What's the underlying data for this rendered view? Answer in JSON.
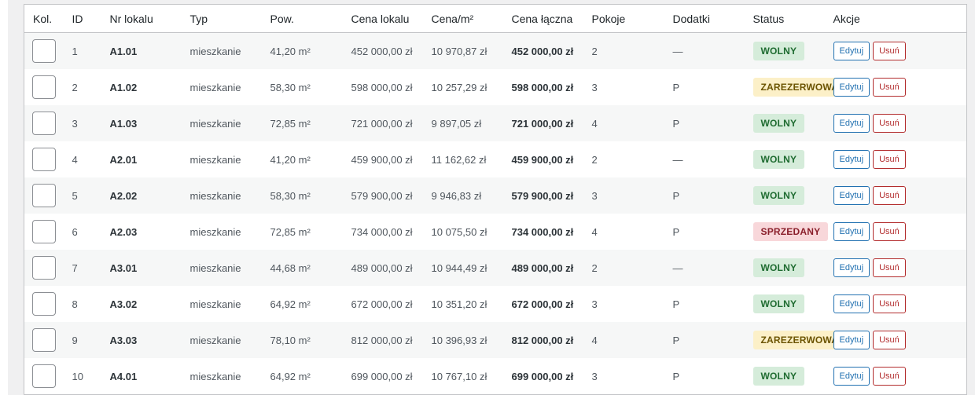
{
  "table": {
    "headers": [
      "Kol.",
      "ID",
      "Nr lokalu",
      "Typ",
      "Pow.",
      "Cena lokalu",
      "Cena/m²",
      "Cena łączna",
      "Pokoje",
      "Dodatki",
      "Status",
      "Akcje"
    ],
    "rows": [
      {
        "cells": [
          "1",
          "A1.01",
          "mieszkanie",
          "41,20 m²",
          "452 000,00 zł",
          "10 970,87 zł",
          "452 000,00 zł",
          "2",
          "—"
        ],
        "status": {
          "label": "WOLNY",
          "color": "#1e6b30",
          "background": "#d5ecda"
        },
        "actions": [
          "Edytuj",
          "Usuń"
        ]
      },
      {
        "cells": [
          "2",
          "A1.02",
          "mieszkanie",
          "58,30 m²",
          "598 000,00 zł",
          "10 257,29 zł",
          "598 000,00 zł",
          "3",
          "P"
        ],
        "status": {
          "label": "ZAREZERWOWANY",
          "color": "#6b5300",
          "background": "#fcf0c8"
        },
        "actions": [
          "Edytuj",
          "Usuń"
        ]
      },
      {
        "cells": [
          "3",
          "A1.03",
          "mieszkanie",
          "72,85 m²",
          "721 000,00 zł",
          "9 897,05 zł",
          "721 000,00 zł",
          "4",
          "P"
        ],
        "status": {
          "label": "WOLNY",
          "color": "#1e6b30",
          "background": "#d5ecda"
        },
        "actions": [
          "Edytuj",
          "Usuń"
        ]
      },
      {
        "cells": [
          "4",
          "A2.01",
          "mieszkanie",
          "41,20 m²",
          "459 900,00 zł",
          "11 162,62 zł",
          "459 900,00 zł",
          "2",
          "—"
        ],
        "status": {
          "label": "WOLNY",
          "color": "#1e6b30",
          "background": "#d5ecda"
        },
        "actions": [
          "Edytuj",
          "Usuń"
        ]
      },
      {
        "cells": [
          "5",
          "A2.02",
          "mieszkanie",
          "58,30 m²",
          "579 900,00 zł",
          "9 946,83 zł",
          "579 900,00 zł",
          "3",
          "P"
        ],
        "status": {
          "label": "WOLNY",
          "color": "#1e6b30",
          "background": "#d5ecda"
        },
        "actions": [
          "Edytuj",
          "Usuń"
        ]
      },
      {
        "cells": [
          "6",
          "A2.03",
          "mieszkanie",
          "72,85 m²",
          "734 000,00 zł",
          "10 075,50 zł",
          "734 000,00 zł",
          "4",
          "P"
        ],
        "status": {
          "label": "SPRZEDANY",
          "color": "#8a1f2b",
          "background": "#f8d7da"
        },
        "actions": [
          "Edytuj",
          "Usuń"
        ]
      },
      {
        "cells": [
          "7",
          "A3.01",
          "mieszkanie",
          "44,68 m²",
          "489 000,00 zł",
          "10 944,49 zł",
          "489 000,00 zł",
          "2",
          "—"
        ],
        "status": {
          "label": "WOLNY",
          "color": "#1e6b30",
          "background": "#d5ecda"
        },
        "actions": [
          "Edytuj",
          "Usuń"
        ]
      },
      {
        "cells": [
          "8",
          "A3.02",
          "mieszkanie",
          "64,92 m²",
          "672 000,00 zł",
          "10 351,20 zł",
          "672 000,00 zł",
          "3",
          "P"
        ],
        "status": {
          "label": "WOLNY",
          "color": "#1e6b30",
          "background": "#d5ecda"
        },
        "actions": [
          "Edytuj",
          "Usuń"
        ]
      },
      {
        "cells": [
          "9",
          "A3.03",
          "mieszkanie",
          "78,10 m²",
          "812 000,00 zł",
          "10 396,93 zł",
          "812 000,00 zł",
          "4",
          "P"
        ],
        "status": {
          "label": "ZAREZERWOWANY",
          "color": "#6b5300",
          "background": "#fcf0c8"
        },
        "actions": [
          "Edytuj",
          "Usuń"
        ]
      },
      {
        "cells": [
          "10",
          "A4.01",
          "mieszkanie",
          "64,92 m²",
          "699 000,00 zł",
          "10 767,10 zł",
          "699 000,00 zł",
          "3",
          "P"
        ],
        "status": {
          "label": "WOLNY",
          "color": "#1e6b30",
          "background": "#d5ecda"
        },
        "actions": [
          "Edytuj",
          "Usuń"
        ]
      }
    ]
  }
}
